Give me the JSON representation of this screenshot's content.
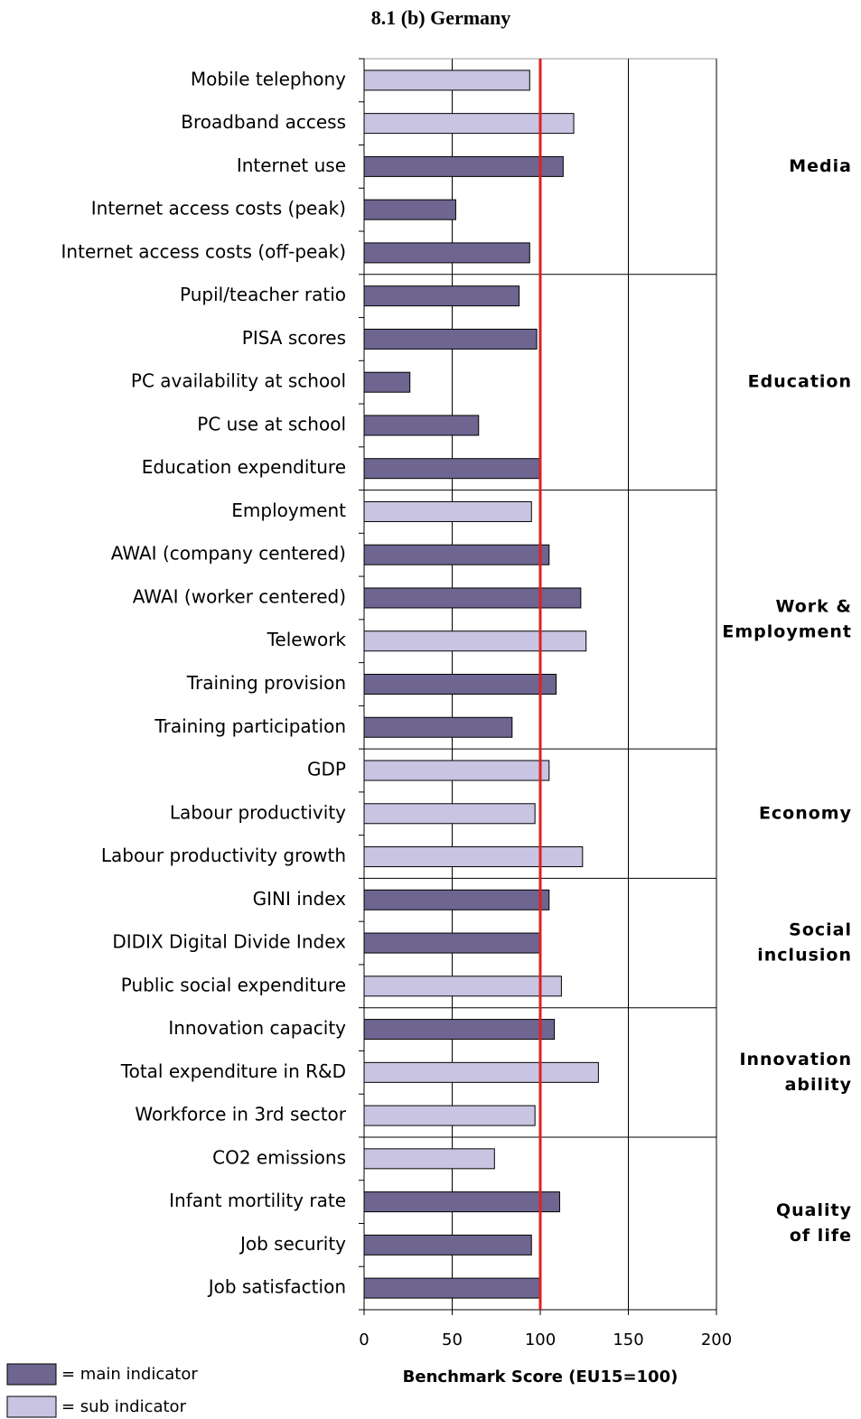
{
  "chart_data": {
    "type": "bar",
    "orientation": "horizontal",
    "title": "8.1 (b) Germany",
    "x_label": "Benchmark Score (EU15=100)",
    "xlim": [
      0,
      200
    ],
    "xticks": [
      0,
      50,
      100,
      150,
      200
    ],
    "grid": true,
    "reference_line": {
      "value": 100,
      "color": "#e02020"
    },
    "groups": [
      {
        "label": [
          "Media"
        ],
        "categories": [
          "Mobile telephony",
          "Broadband access",
          "Internet use",
          "Internet access costs (peak)",
          "Internet access costs (off-peak)"
        ]
      },
      {
        "label": [
          "Education"
        ],
        "categories": [
          "Pupil/teacher ratio",
          "PISA scores",
          "PC availability at school",
          "PC use at school",
          "Education expenditure"
        ]
      },
      {
        "label": [
          "Work &",
          "Employment"
        ],
        "categories": [
          "Employment",
          "AWAI (company centered)",
          "AWAI (worker centered)",
          "Telework",
          "Training provision",
          "Training participation"
        ]
      },
      {
        "label": [
          "Economy"
        ],
        "categories": [
          "GDP",
          "Labour productivity",
          "Labour productivity growth"
        ]
      },
      {
        "label": [
          "Social",
          "inclusion"
        ],
        "categories": [
          "GINI index",
          "DIDIX Digital Divide Index",
          "Public social expenditure"
        ]
      },
      {
        "label": [
          "Innovation",
          "ability"
        ],
        "categories": [
          "Innovation capacity",
          "Total expenditure in R&D",
          "Workforce in 3rd sector"
        ]
      },
      {
        "label": [
          "Quality",
          "of life"
        ],
        "categories": [
          "CO2 emissions",
          "Infant mortility rate",
          "Job security",
          "Job satisfaction"
        ]
      }
    ],
    "series": [
      {
        "name": "= main indicator",
        "color": "#6e6590",
        "values": [
          null,
          null,
          113,
          52,
          94,
          88,
          98,
          26,
          65,
          100,
          null,
          105,
          123,
          null,
          109,
          84,
          null,
          null,
          null,
          105,
          100,
          null,
          108,
          null,
          null,
          null,
          111,
          95,
          100
        ]
      },
      {
        "name": "= sub indicator",
        "color": "#c8c4e2",
        "values": [
          94,
          119,
          null,
          null,
          null,
          null,
          null,
          null,
          null,
          null,
          95,
          null,
          null,
          126,
          null,
          null,
          105,
          97,
          124,
          null,
          null,
          112,
          null,
          133,
          97,
          74,
          null,
          null,
          null
        ]
      }
    ]
  }
}
